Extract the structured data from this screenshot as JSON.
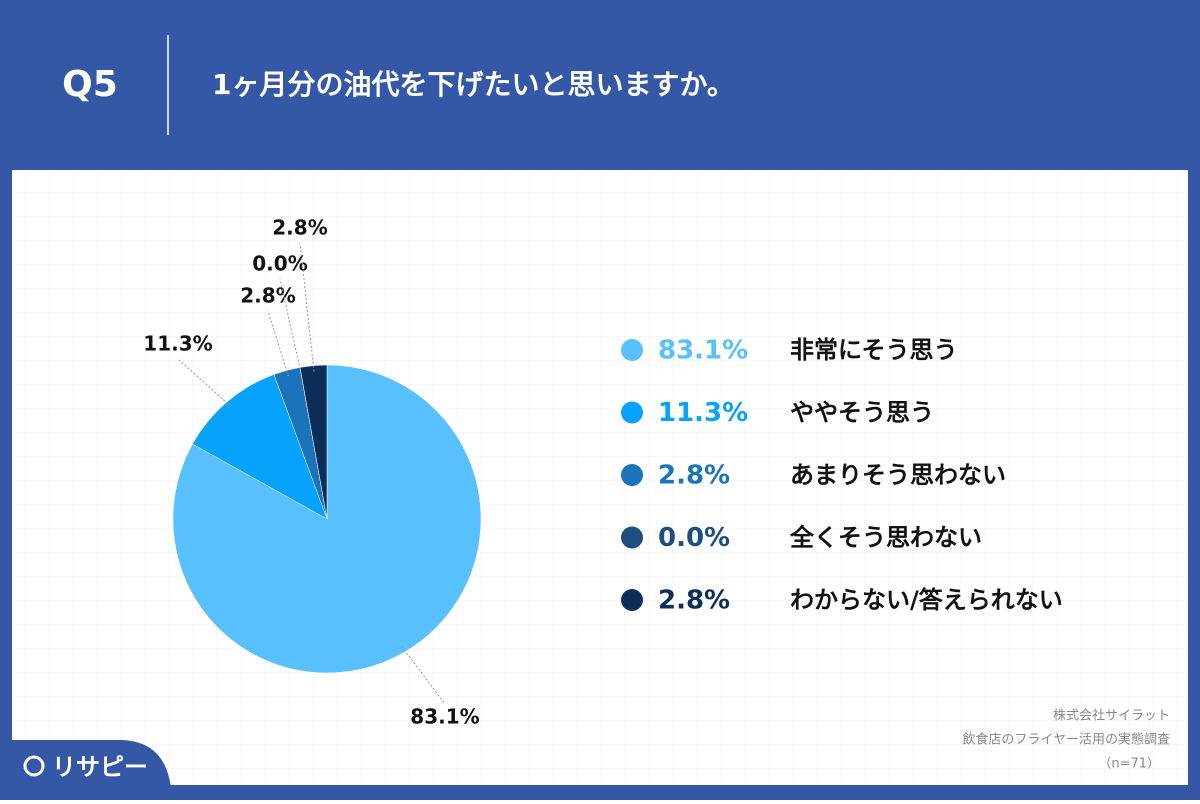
{
  "header": {
    "number": "Q5",
    "title": "1ヶ月分の油代を下げたいと思いますか。"
  },
  "chart_data": {
    "type": "pie",
    "categories": [
      "非常にそう思う",
      "ややそう思う",
      "あまりそう思わない",
      "全くそう思わない",
      "わからない/答えられない"
    ],
    "values": [
      83.1,
      11.3,
      2.8,
      0.0,
      2.8
    ],
    "value_labels": [
      "83.1%",
      "11.3%",
      "2.8%",
      "0.0%",
      "2.8%"
    ],
    "colors": [
      "#58c0fd",
      "#06a2fb",
      "#1b73b9",
      "#1f4d80",
      "#0c2e58"
    ],
    "legend": "right"
  },
  "source": {
    "company": "株式会社サイラット",
    "survey": "飲食店のフライヤー活用の実態調査",
    "sample": "（n=71）"
  },
  "logo": "リサピー"
}
